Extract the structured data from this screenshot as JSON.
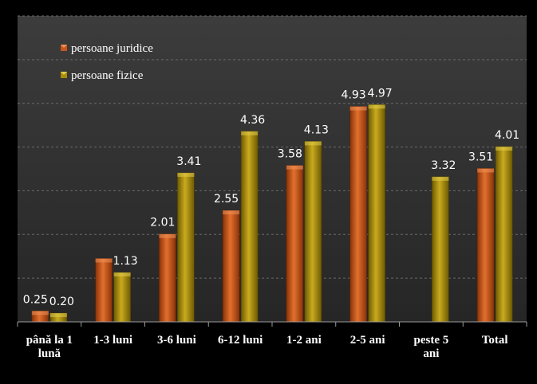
{
  "chart_data": {
    "type": "bar",
    "title": "",
    "xlabel": "",
    "ylabel": "",
    "ylim": [
      0,
      7
    ],
    "grid": true,
    "legend_position": "top-left",
    "categories": [
      [
        "până la 1",
        "lună"
      ],
      [
        "1-3 luni"
      ],
      [
        "3-6 luni"
      ],
      [
        "6-12 luni"
      ],
      [
        "1-2 ani"
      ],
      [
        "2-5 ani"
      ],
      [
        "peste 5",
        "ani"
      ],
      [
        "Total"
      ]
    ],
    "series": [
      {
        "name": "persoane juridice",
        "color": "#c8561c",
        "values": [
          0.25,
          1.45,
          2.01,
          2.55,
          3.58,
          4.93,
          null,
          3.51
        ],
        "labels": [
          "0.25",
          "",
          "2.01",
          "2.55",
          "3.58",
          "4.93",
          "",
          "3.51"
        ]
      },
      {
        "name": "persoane fizice",
        "color": "#a88c0c",
        "values": [
          0.2,
          1.13,
          3.41,
          4.36,
          4.13,
          4.97,
          3.32,
          4.01
        ],
        "labels": [
          "0.20",
          "1.13",
          "3.41",
          "4.36",
          "4.13",
          "4.97",
          "3.32",
          "4.01"
        ]
      }
    ]
  }
}
